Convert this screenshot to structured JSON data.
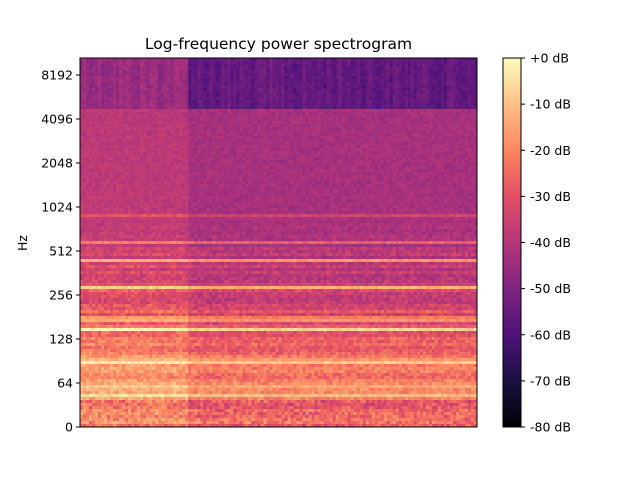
{
  "chart_data": {
    "type": "heatmap",
    "title": "Log-frequency power spectrogram",
    "ylabel": "Hz",
    "xlabel": "",
    "y_scale": "log",
    "y_ticks": [
      {
        "value": 0,
        "label": "0"
      },
      {
        "value": 64,
        "label": "64"
      },
      {
        "value": 128,
        "label": "128"
      },
      {
        "value": 256,
        "label": "256"
      },
      {
        "value": 512,
        "label": "512"
      },
      {
        "value": 1024,
        "label": "1024"
      },
      {
        "value": 2048,
        "label": "2048"
      },
      {
        "value": 4096,
        "label": "4096"
      },
      {
        "value": 8192,
        "label": "8192"
      }
    ],
    "ylim": [
      0,
      11025
    ],
    "x_ticks": [],
    "colorbar": {
      "label": "",
      "range": [
        -80,
        0
      ],
      "ticks": [
        {
          "value": 0,
          "label": "+0 dB"
        },
        {
          "value": -10,
          "label": "-10 dB"
        },
        {
          "value": -20,
          "label": "-20 dB"
        },
        {
          "value": -30,
          "label": "-30 dB"
        },
        {
          "value": -40,
          "label": "-40 dB"
        },
        {
          "value": -50,
          "label": "-50 dB"
        },
        {
          "value": -60,
          "label": "-60 dB"
        },
        {
          "value": -70,
          "label": "-70 dB"
        },
        {
          "value": -80,
          "label": "-80 dB"
        }
      ],
      "colormap": "magma",
      "position": "right"
    },
    "harmonic_bands_hz": [
      {
        "freq": 45,
        "level": -5
      },
      {
        "freq": 60,
        "level": -8
      },
      {
        "freq": 90,
        "level": -3
      },
      {
        "freq": 150,
        "level": -6
      },
      {
        "freq": 175,
        "level": -10
      },
      {
        "freq": 290,
        "level": -12
      },
      {
        "freq": 440,
        "level": -18
      },
      {
        "freq": 580,
        "level": -25
      },
      {
        "freq": 880,
        "level": -28
      }
    ],
    "grid": false,
    "legend": "none"
  }
}
